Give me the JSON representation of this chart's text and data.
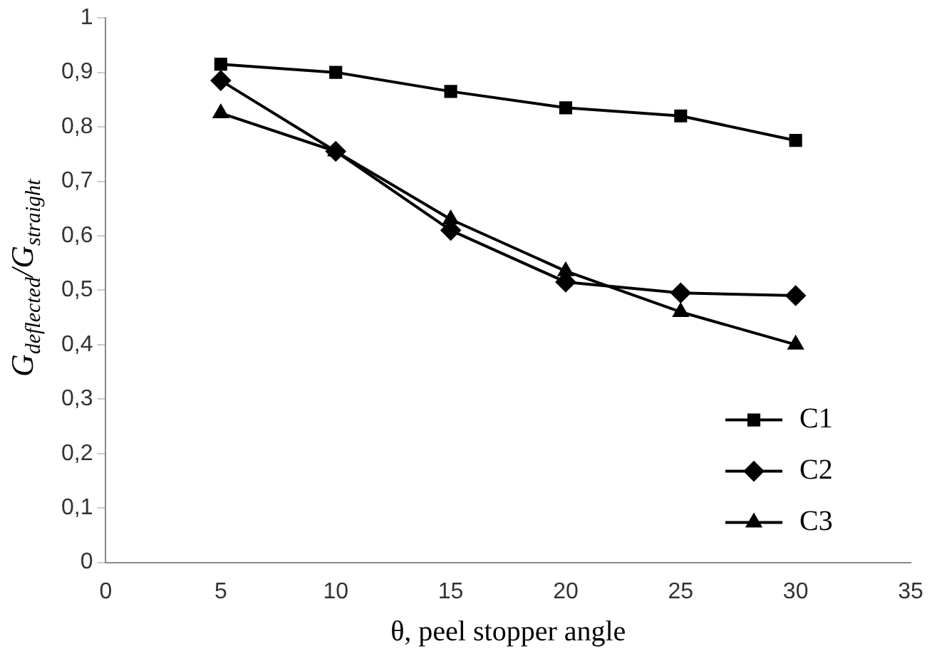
{
  "chart_data": {
    "type": "line",
    "xlabel": "θ, peel stopper angle",
    "ylabel": "G$_{deflected}$/G$_{straight}$",
    "x": [
      5,
      10,
      15,
      20,
      25,
      30
    ],
    "series": [
      {
        "name": "C1",
        "color": "#000000",
        "marker": "square",
        "values": [
          0.915,
          0.9,
          0.865,
          0.835,
          0.82,
          0.775
        ]
      },
      {
        "name": "C2",
        "color": "#000000",
        "marker": "diamond",
        "values": [
          0.885,
          0.755,
          0.61,
          0.515,
          0.495,
          0.49
        ]
      },
      {
        "name": "C3",
        "color": "#000000",
        "marker": "triangle",
        "values": [
          0.825,
          0.755,
          0.63,
          0.535,
          0.46,
          0.4
        ]
      }
    ],
    "xlim": [
      0,
      35
    ],
    "xticks": [
      0,
      5,
      10,
      15,
      20,
      25,
      30,
      35
    ],
    "ylim": [
      0,
      1
    ],
    "yticks": [
      0,
      {
        "value": 0.1,
        "label": "0,1"
      },
      {
        "value": 0.2,
        "label": "0,2"
      },
      {
        "value": 0.3,
        "label": "0,3"
      },
      {
        "value": 0.4,
        "label": "0,4"
      },
      {
        "value": 0.5,
        "label": "0,5"
      },
      {
        "value": 0.6,
        "label": "0,6"
      },
      {
        "value": 0.7,
        "label": "0,7"
      },
      {
        "value": 0.8,
        "label": "0,8"
      },
      {
        "value": 0.9,
        "label": "0,9"
      },
      1
    ],
    "grid": false,
    "legend": "bottom right",
    "line_style": "solid"
  }
}
